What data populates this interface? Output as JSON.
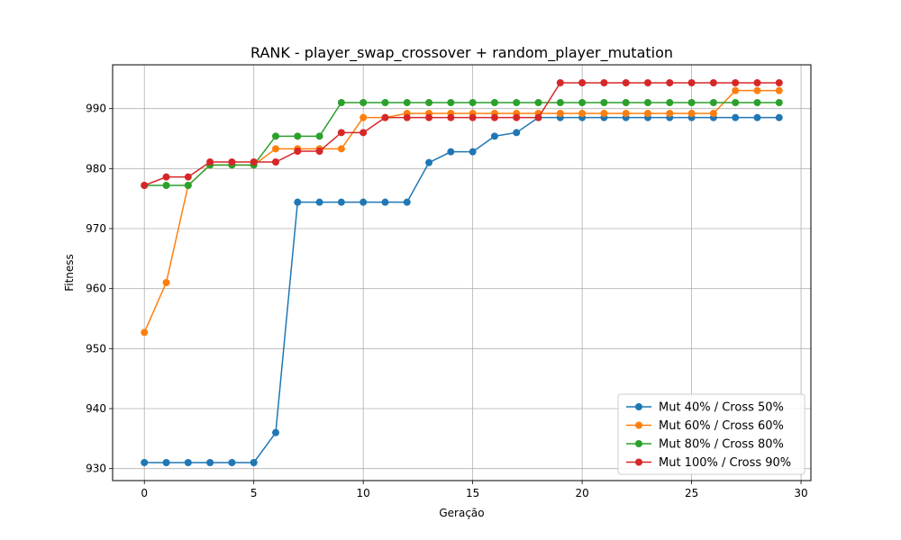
{
  "chart_data": {
    "type": "line",
    "title": "RANK - player_swap_crossover + random_player_mutation",
    "xlabel": "Geração",
    "ylabel": "Fitness",
    "xlim": [
      -1.45,
      30.45
    ],
    "ylim": [
      928.0,
      997.3
    ],
    "xticks": [
      0,
      5,
      10,
      15,
      20,
      25,
      30
    ],
    "yticks": [
      930,
      940,
      950,
      960,
      970,
      980,
      990
    ],
    "grid": true,
    "legend_position": "lower-right",
    "x": [
      0,
      1,
      2,
      3,
      4,
      5,
      6,
      7,
      8,
      9,
      10,
      11,
      12,
      13,
      14,
      15,
      16,
      17,
      18,
      19,
      20,
      21,
      22,
      23,
      24,
      25,
      26,
      27,
      28,
      29
    ],
    "series": [
      {
        "name": "Mut 40% / Cross 50%",
        "color": "#1f77b4",
        "values": [
          931.0,
          931.0,
          931.0,
          931.0,
          931.0,
          931.0,
          936.0,
          974.4,
          974.4,
          974.4,
          974.4,
          974.4,
          974.4,
          981.0,
          982.8,
          982.8,
          985.4,
          986.0,
          988.5,
          988.5,
          988.5,
          988.5,
          988.5,
          988.5,
          988.5,
          988.5,
          988.5,
          988.5,
          988.5,
          988.5
        ]
      },
      {
        "name": "Mut 60% / Cross 60%",
        "color": "#ff7f0e",
        "values": [
          952.7,
          961.0,
          977.2,
          980.6,
          980.6,
          980.6,
          983.3,
          983.3,
          983.3,
          983.3,
          988.5,
          988.5,
          989.2,
          989.2,
          989.2,
          989.2,
          989.2,
          989.2,
          989.2,
          989.2,
          989.2,
          989.2,
          989.2,
          989.2,
          989.2,
          989.2,
          989.2,
          993.0,
          993.0,
          993.0
        ]
      },
      {
        "name": "Mut 80% / Cross 80%",
        "color": "#2ca02c",
        "values": [
          977.2,
          977.2,
          977.2,
          980.6,
          980.6,
          980.6,
          985.4,
          985.4,
          985.4,
          991.0,
          991.0,
          991.0,
          991.0,
          991.0,
          991.0,
          991.0,
          991.0,
          991.0,
          991.0,
          991.0,
          991.0,
          991.0,
          991.0,
          991.0,
          991.0,
          991.0,
          991.0,
          991.0,
          991.0,
          991.0
        ]
      },
      {
        "name": "Mut 100% / Cross 90%",
        "color": "#d62728",
        "values": [
          977.2,
          978.6,
          978.6,
          981.1,
          981.1,
          981.1,
          981.1,
          982.9,
          982.9,
          986.0,
          986.0,
          988.5,
          988.5,
          988.5,
          988.5,
          988.5,
          988.5,
          988.5,
          988.5,
          994.3,
          994.3,
          994.3,
          994.3,
          994.3,
          994.3,
          994.3,
          994.3,
          994.3,
          994.3,
          994.3
        ]
      }
    ]
  }
}
